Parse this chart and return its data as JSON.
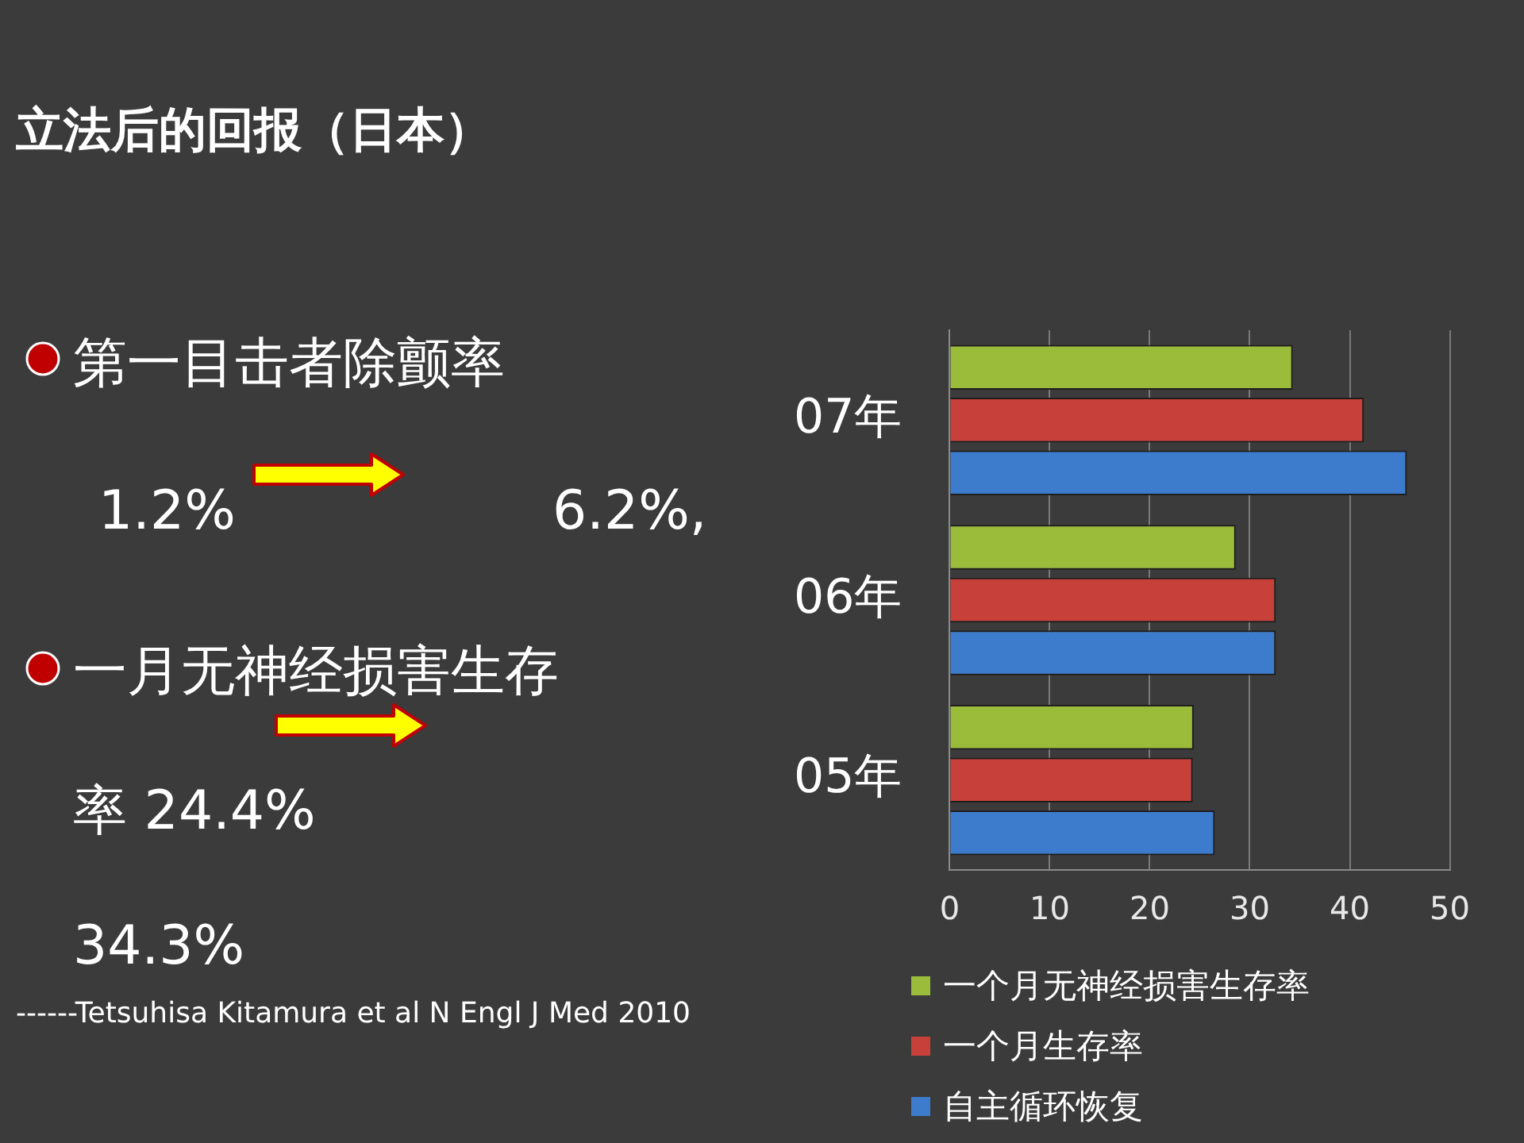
{
  "chart_data": {
    "type": "bar",
    "orientation": "horizontal",
    "title": "立法后的回报（日本）",
    "categories": [
      "07年",
      "06年",
      "05年"
    ],
    "series": [
      {
        "name": "一个月无神经损害生存率",
        "color": "#9bbb3b",
        "values": [
          34.3,
          28.6,
          24.4
        ]
      },
      {
        "name": "一个月生存率",
        "color": "#c8403a",
        "values": [
          41.4,
          32.6,
          24.3
        ]
      },
      {
        "name": "自主循环恢复",
        "color": "#3d7bcc",
        "values": [
          45.7,
          32.6,
          26.5
        ]
      }
    ],
    "xlim": [
      0,
      50
    ],
    "xticks": [
      0,
      10,
      20,
      30,
      40,
      50
    ],
    "grid": "x",
    "legend": "bottom",
    "annotations": [
      "第一目击者除颤率",
      "1.2%",
      "6.2%,",
      "一月无神经损害生存",
      "率 24.4%",
      "34.3%",
      "------Tetsuhisa Kitamura  et al N Engl J Med  2010"
    ]
  }
}
